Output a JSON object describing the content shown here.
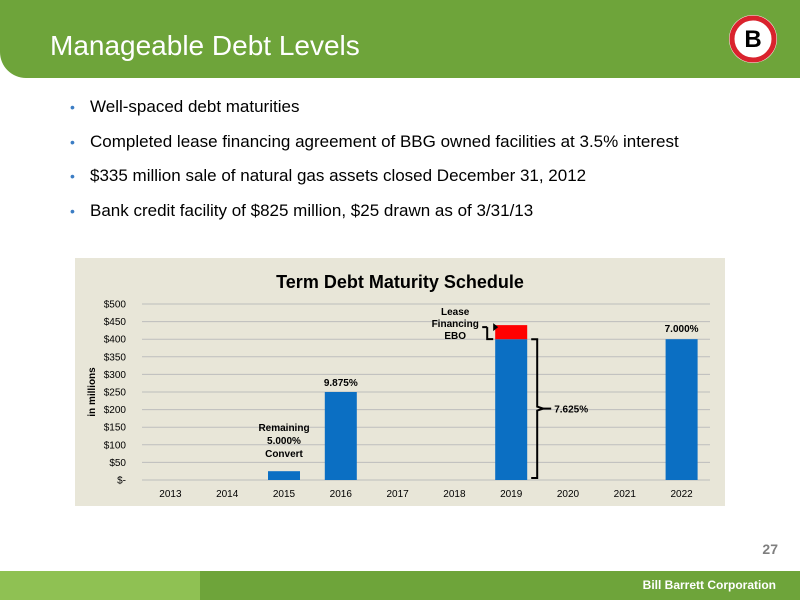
{
  "header": {
    "title": "Manageable Debt Levels",
    "logo_letter": "B",
    "accent_color": "#6ea43a",
    "logo_ring_color": "#d9232d"
  },
  "bullets": [
    "Well-spaced debt maturities",
    "Completed lease financing agreement of BBG owned facilities at 3.5% interest",
    "$335 million sale of natural gas assets closed December 31, 2012",
    "Bank credit facility of $825 million, $25 drawn as of 3/31/13"
  ],
  "chart_data": {
    "type": "bar",
    "stacked": true,
    "title": "Term Debt Maturity Schedule",
    "ylabel": "in millions",
    "xlabel": "",
    "ylim": [
      0,
      500
    ],
    "yticks": [
      "$-",
      "$50",
      "$100",
      "$150",
      "$200",
      "$250",
      "$300",
      "$350",
      "$400",
      "$450",
      "$500"
    ],
    "categories": [
      "2013",
      "2014",
      "2015",
      "2016",
      "2017",
      "2018",
      "2019",
      "2020",
      "2021",
      "2022"
    ],
    "series": [
      {
        "values": [
          0,
          0,
          25,
          250,
          0,
          0,
          400,
          0,
          0,
          400
        ],
        "color": "#0b6fc3"
      },
      {
        "values": [
          0,
          0,
          0,
          0,
          0,
          0,
          40,
          0,
          0,
          0
        ],
        "color": "#ff0000"
      }
    ],
    "annotations": {
      "convert_label": [
        "Remaining",
        "5.000%",
        "Convert"
      ],
      "rate_2016": "9.875%",
      "lease_label": [
        "Lease",
        "Financing",
        "EBO"
      ],
      "rate_2019": "7.625%",
      "rate_2022": "7.000%"
    },
    "grid": true
  },
  "footer": {
    "page_number": "27",
    "brand": "Bill Barrett Corporation"
  }
}
